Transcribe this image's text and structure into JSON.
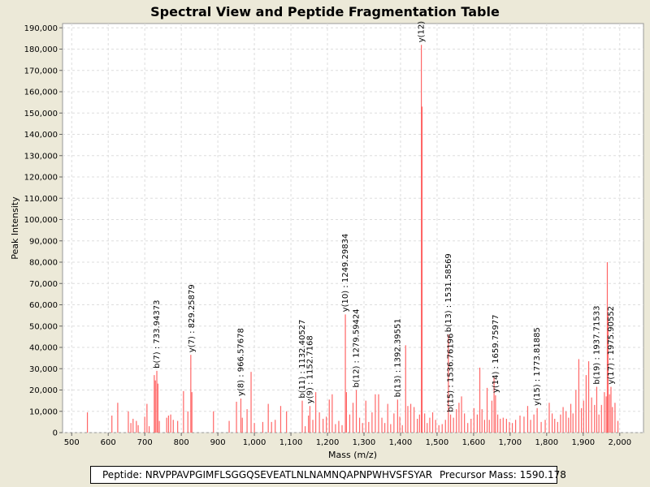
{
  "chart_data": {
    "type": "bar",
    "title": "Spectral View and Peptide Fragmentation Table",
    "xlabel": "Mass (m/z)",
    "ylabel": "Peak Intensity",
    "xlim": [
      475,
      2065
    ],
    "ylim": [
      0,
      192000
    ],
    "x_ticks": [
      500,
      600,
      700,
      800,
      900,
      1000,
      1100,
      1200,
      1300,
      1400,
      1500,
      1600,
      1700,
      1800,
      1900,
      2000
    ],
    "x_tick_labels": [
      "500",
      "600",
      "700",
      "800",
      "900",
      "1,000",
      "1,100",
      "1,200",
      "1,300",
      "1,400",
      "1,500",
      "1,600",
      "1,700",
      "1,800",
      "1,900",
      "2,000"
    ],
    "y_ticks": [
      0,
      10000,
      20000,
      30000,
      40000,
      50000,
      60000,
      70000,
      80000,
      90000,
      100000,
      110000,
      120000,
      130000,
      140000,
      150000,
      160000,
      170000,
      180000,
      190000
    ],
    "y_tick_labels": [
      "0",
      "10,000",
      "20,000",
      "30,000",
      "40,000",
      "50,000",
      "60,000",
      "70,000",
      "80,000",
      "90,000",
      "100,000",
      "110,000",
      "120,000",
      "130,000",
      "140,000",
      "150,000",
      "160,000",
      "170,000",
      "180,000",
      "190,000"
    ],
    "grid": true,
    "bar_color": "#ff6666",
    "peaks": [
      {
        "x": 543,
        "y": 9500
      },
      {
        "x": 610,
        "y": 8000
      },
      {
        "x": 626,
        "y": 14000
      },
      {
        "x": 655,
        "y": 10000
      },
      {
        "x": 662,
        "y": 4500
      },
      {
        "x": 668,
        "y": 6500
      },
      {
        "x": 677,
        "y": 5500
      },
      {
        "x": 682,
        "y": 3500
      },
      {
        "x": 700,
        "y": 7500
      },
      {
        "x": 706,
        "y": 13500
      },
      {
        "x": 712,
        "y": 3000
      },
      {
        "x": 726,
        "y": 27000
      },
      {
        "x": 729,
        "y": 24500
      },
      {
        "x": 733,
        "y": 29000
      },
      {
        "x": 736,
        "y": 23000
      },
      {
        "x": 740,
        "y": 5500
      },
      {
        "x": 760,
        "y": 7000
      },
      {
        "x": 765,
        "y": 8000
      },
      {
        "x": 771,
        "y": 8500
      },
      {
        "x": 778,
        "y": 6000
      },
      {
        "x": 790,
        "y": 5500
      },
      {
        "x": 806,
        "y": 19500
      },
      {
        "x": 818,
        "y": 10000
      },
      {
        "x": 826,
        "y": 36500
      },
      {
        "x": 829,
        "y": 19000
      },
      {
        "x": 888,
        "y": 10000
      },
      {
        "x": 931,
        "y": 5500
      },
      {
        "x": 951,
        "y": 14500
      },
      {
        "x": 963,
        "y": 16000
      },
      {
        "x": 967,
        "y": 7000
      },
      {
        "x": 980,
        "y": 11000
      },
      {
        "x": 991,
        "y": 28500
      },
      {
        "x": 1000,
        "y": 4500
      },
      {
        "x": 1023,
        "y": 5000
      },
      {
        "x": 1038,
        "y": 13500
      },
      {
        "x": 1047,
        "y": 5000
      },
      {
        "x": 1057,
        "y": 6000
      },
      {
        "x": 1072,
        "y": 12500
      },
      {
        "x": 1088,
        "y": 10000
      },
      {
        "x": 1131,
        "y": 15000
      },
      {
        "x": 1139,
        "y": 3000
      },
      {
        "x": 1148,
        "y": 8000
      },
      {
        "x": 1152,
        "y": 12500
      },
      {
        "x": 1160,
        "y": 6000
      },
      {
        "x": 1168,
        "y": 19000
      },
      {
        "x": 1178,
        "y": 9500
      },
      {
        "x": 1188,
        "y": 6500
      },
      {
        "x": 1197,
        "y": 7500
      },
      {
        "x": 1205,
        "y": 15500
      },
      {
        "x": 1213,
        "y": 18000
      },
      {
        "x": 1222,
        "y": 4000
      },
      {
        "x": 1231,
        "y": 5500
      },
      {
        "x": 1240,
        "y": 3500
      },
      {
        "x": 1249,
        "y": 55500
      },
      {
        "x": 1252,
        "y": 19000
      },
      {
        "x": 1261,
        "y": 8500
      },
      {
        "x": 1270,
        "y": 14000
      },
      {
        "x": 1279,
        "y": 20000
      },
      {
        "x": 1288,
        "y": 7000
      },
      {
        "x": 1296,
        "y": 4500
      },
      {
        "x": 1305,
        "y": 15000
      },
      {
        "x": 1313,
        "y": 5000
      },
      {
        "x": 1322,
        "y": 9500
      },
      {
        "x": 1331,
        "y": 18000
      },
      {
        "x": 1340,
        "y": 18000
      },
      {
        "x": 1349,
        "y": 7000
      },
      {
        "x": 1357,
        "y": 4500
      },
      {
        "x": 1365,
        "y": 13500
      },
      {
        "x": 1373,
        "y": 4000
      },
      {
        "x": 1382,
        "y": 9000
      },
      {
        "x": 1392,
        "y": 15500
      },
      {
        "x": 1398,
        "y": 7500
      },
      {
        "x": 1405,
        "y": 3500
      },
      {
        "x": 1414,
        "y": 41000
      },
      {
        "x": 1420,
        "y": 12500
      },
      {
        "x": 1428,
        "y": 13500
      },
      {
        "x": 1437,
        "y": 12000
      },
      {
        "x": 1446,
        "y": 6500
      },
      {
        "x": 1452,
        "y": 8500
      },
      {
        "x": 1457,
        "y": 182000
      },
      {
        "x": 1459,
        "y": 153000
      },
      {
        "x": 1466,
        "y": 9000
      },
      {
        "x": 1473,
        "y": 4500
      },
      {
        "x": 1480,
        "y": 7000
      },
      {
        "x": 1488,
        "y": 9500
      },
      {
        "x": 1496,
        "y": 6000
      },
      {
        "x": 1505,
        "y": 3500
      },
      {
        "x": 1514,
        "y": 4000
      },
      {
        "x": 1523,
        "y": 6000
      },
      {
        "x": 1531,
        "y": 46000
      },
      {
        "x": 1537,
        "y": 8500
      },
      {
        "x": 1545,
        "y": 7000
      },
      {
        "x": 1553,
        "y": 11000
      },
      {
        "x": 1560,
        "y": 14000
      },
      {
        "x": 1567,
        "y": 17000
      },
      {
        "x": 1575,
        "y": 9000
      },
      {
        "x": 1584,
        "y": 4500
      },
      {
        "x": 1593,
        "y": 6500
      },
      {
        "x": 1601,
        "y": 11500
      },
      {
        "x": 1610,
        "y": 8500
      },
      {
        "x": 1617,
        "y": 30500
      },
      {
        "x": 1623,
        "y": 11000
      },
      {
        "x": 1630,
        "y": 6000
      },
      {
        "x": 1637,
        "y": 21000
      },
      {
        "x": 1643,
        "y": 6000
      },
      {
        "x": 1650,
        "y": 15000
      },
      {
        "x": 1656,
        "y": 26000
      },
      {
        "x": 1660,
        "y": 17500
      },
      {
        "x": 1666,
        "y": 8500
      },
      {
        "x": 1673,
        "y": 6500
      },
      {
        "x": 1681,
        "y": 7000
      },
      {
        "x": 1690,
        "y": 6500
      },
      {
        "x": 1698,
        "y": 5000
      },
      {
        "x": 1706,
        "y": 4500
      },
      {
        "x": 1715,
        "y": 6000
      },
      {
        "x": 1727,
        "y": 8000
      },
      {
        "x": 1738,
        "y": 7500
      },
      {
        "x": 1748,
        "y": 12500
      },
      {
        "x": 1756,
        "y": 6000
      },
      {
        "x": 1765,
        "y": 8500
      },
      {
        "x": 1774,
        "y": 11500
      },
      {
        "x": 1785,
        "y": 5000
      },
      {
        "x": 1796,
        "y": 6000
      },
      {
        "x": 1807,
        "y": 14000
      },
      {
        "x": 1815,
        "y": 9000
      },
      {
        "x": 1822,
        "y": 6500
      },
      {
        "x": 1830,
        "y": 5000
      },
      {
        "x": 1838,
        "y": 8500
      },
      {
        "x": 1845,
        "y": 12000
      },
      {
        "x": 1853,
        "y": 10000
      },
      {
        "x": 1860,
        "y": 7000
      },
      {
        "x": 1866,
        "y": 13500
      },
      {
        "x": 1872,
        "y": 9000
      },
      {
        "x": 1880,
        "y": 20000
      },
      {
        "x": 1888,
        "y": 34500
      },
      {
        "x": 1895,
        "y": 11500
      },
      {
        "x": 1901,
        "y": 15000
      },
      {
        "x": 1908,
        "y": 27000
      },
      {
        "x": 1915,
        "y": 33500
      },
      {
        "x": 1923,
        "y": 16500
      },
      {
        "x": 1931,
        "y": 13000
      },
      {
        "x": 1937,
        "y": 21500
      },
      {
        "x": 1943,
        "y": 8500
      },
      {
        "x": 1950,
        "y": 13000
      },
      {
        "x": 1958,
        "y": 19000
      },
      {
        "x": 1963,
        "y": 17000
      },
      {
        "x": 1966,
        "y": 80000
      },
      {
        "x": 1968,
        "y": 55000
      },
      {
        "x": 1972,
        "y": 18000
      },
      {
        "x": 1976,
        "y": 21500
      },
      {
        "x": 1980,
        "y": 12000
      },
      {
        "x": 1987,
        "y": 14000
      },
      {
        "x": 1995,
        "y": 5500
      }
    ],
    "annotations": [
      {
        "label": "y(7) : 829.25879",
        "x": 829,
        "y": 36500
      },
      {
        "label": "b(7) : 733.94373",
        "x": 733,
        "y": 29000
      },
      {
        "label": "y(8) : 966.57678",
        "x": 963,
        "y": 16000
      },
      {
        "label": "b(11) : 1132.40527",
        "x": 1131,
        "y": 15000
      },
      {
        "label": "y(9) : 1152.7168",
        "x": 1152,
        "y": 12500
      },
      {
        "label": "y(10) : 1249.29834",
        "x": 1249,
        "y": 55500
      },
      {
        "label": "b(12) : 1279.59424",
        "x": 1279,
        "y": 20000
      },
      {
        "label": "b(13) : 1392.39551",
        "x": 1392,
        "y": 15500
      },
      {
        "label": "y(12)",
        "x": 1457,
        "y": 182000
      },
      {
        "label": "b(13) : 1531.58569",
        "x": 1531,
        "y": 46000
      },
      {
        "label": "b(15) : 1536.76196",
        "x": 1537,
        "y": 8500
      },
      {
        "label": "y(14) : 1659.75977",
        "x": 1660,
        "y": 17500
      },
      {
        "label": "y(15) : 1773.81885",
        "x": 1774,
        "y": 11500
      },
      {
        "label": "b(19) : 1937.71533",
        "x": 1937,
        "y": 21500
      },
      {
        "label": "y(17) : 1975.90552",
        "x": 1976,
        "y": 21500
      }
    ]
  },
  "info": {
    "peptide_text": "Peptide: NRVPPAVPGIMFLSGGQSEVEATLNLNAMNQAPNPWHVSFSYAR",
    "mass_text": "Precursor Mass: 1590.178"
  }
}
